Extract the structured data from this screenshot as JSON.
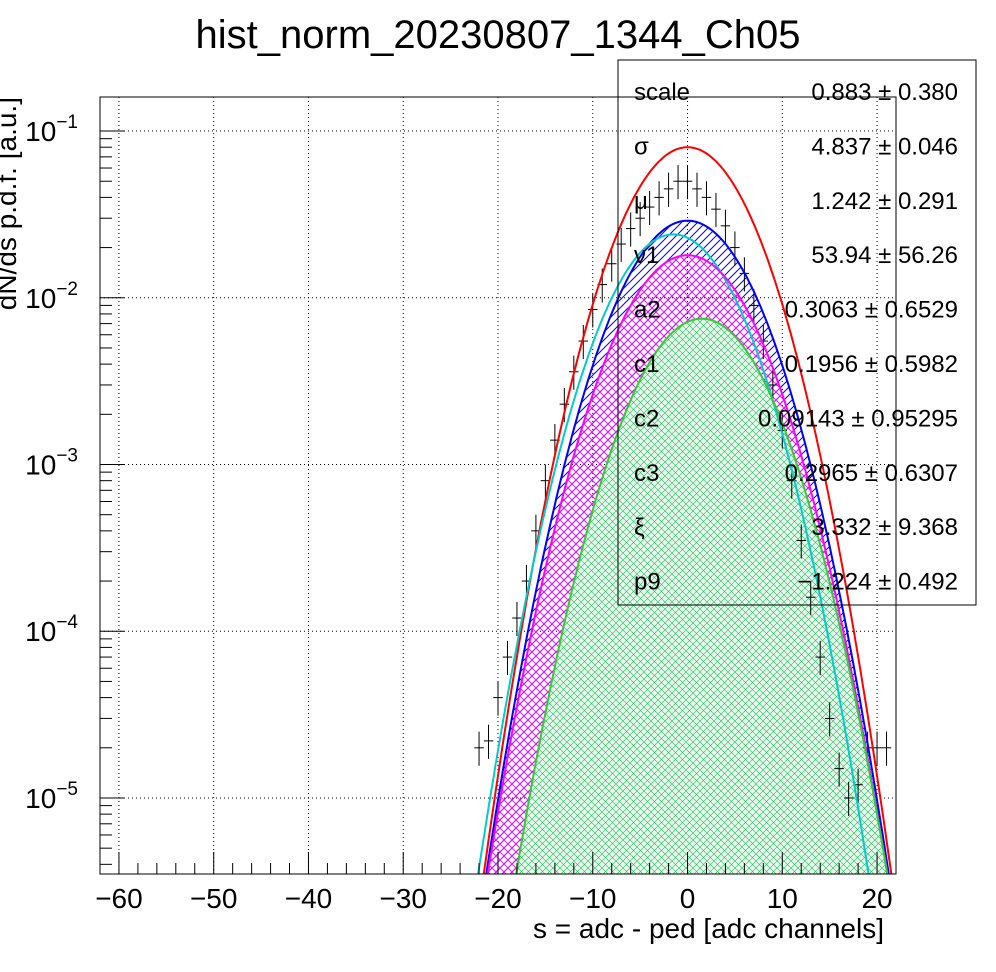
{
  "chart_data": {
    "type": "line",
    "title": "hist_norm_20230807_1344_Ch05",
    "xlabel": "s = adc - ped [adc channels]",
    "ylabel": "dN/ds p.d.f. [a.u.]",
    "xlim": [
      -62,
      22
    ],
    "ylim": [
      3.5e-06,
      0.16
    ],
    "yscale": "log",
    "grid": true,
    "x_ticks": [
      {
        "value": -60,
        "label": "−60"
      },
      {
        "value": -50,
        "label": "−50"
      },
      {
        "value": -40,
        "label": "−40"
      },
      {
        "value": -30,
        "label": "−30"
      },
      {
        "value": -20,
        "label": "−20"
      },
      {
        "value": -10,
        "label": "−10"
      },
      {
        "value": 0,
        "label": "0"
      },
      {
        "value": 10,
        "label": "10"
      },
      {
        "value": 20,
        "label": "20"
      }
    ],
    "y_ticks": [
      {
        "value": 0.1,
        "base": "10",
        "exp": "−1"
      },
      {
        "value": 0.01,
        "base": "10",
        "exp": "−2"
      },
      {
        "value": 0.001,
        "base": "10",
        "exp": "−3"
      },
      {
        "value": 0.0001,
        "base": "10",
        "exp": "−4"
      },
      {
        "value": 1e-05,
        "base": "10",
        "exp": "−5"
      }
    ],
    "histogram": {
      "color": "#000000",
      "x": [
        -22,
        -21,
        -20,
        -19,
        -18,
        -17,
        -16,
        -15,
        -14,
        -13,
        -12,
        -11,
        -10,
        -9,
        -8,
        -7,
        -6,
        -5,
        -4,
        -3,
        -2,
        -1,
        0,
        1,
        2,
        3,
        4,
        5,
        6,
        7,
        8,
        9,
        10,
        11,
        12,
        13,
        14,
        15,
        16,
        17,
        18,
        19,
        20,
        21
      ],
      "y": [
        2e-05,
        2.2e-05,
        4e-05,
        7e-05,
        0.00012,
        0.0002,
        0.0004,
        0.0008,
        0.0014,
        0.0023,
        0.0036,
        0.0055,
        0.0085,
        0.012,
        0.016,
        0.021,
        0.026,
        0.03,
        0.035,
        0.04,
        0.045,
        0.05,
        0.05,
        0.045,
        0.04,
        0.034,
        0.027,
        0.02,
        0.014,
        0.009,
        0.0055,
        0.003,
        0.0016,
        0.0008,
        0.00035,
        0.00016,
        7e-05,
        3e-05,
        1.5e-05,
        1e-05,
        1.2e-05,
        2e-05,
        2e-05,
        2e-05
      ]
    },
    "series": [
      {
        "color": "#ff0000",
        "peak_x": 0,
        "peak_y": 0.08,
        "sigma": 4.8,
        "filled": false
      },
      {
        "color": "#0000ff",
        "peak_x": 0,
        "peak_y": 0.029,
        "sigma": 5.0,
        "filled": true,
        "hatch": "diagonal"
      },
      {
        "color": "#00cccc",
        "peak_x": -1.5,
        "peak_y": 0.024,
        "sigma": 4.9,
        "filled": false
      },
      {
        "color": "#ff00ff",
        "peak_x": 0,
        "peak_y": 0.018,
        "sigma": 5.1,
        "filled": true,
        "hatch": "cross"
      },
      {
        "color": "#33cc33",
        "peak_x": 1.5,
        "peak_y": 0.0075,
        "sigma": 5.0,
        "filled": true,
        "hatch": "cross-light"
      }
    ]
  },
  "stats_box": {
    "rows": [
      {
        "name": "scale",
        "value": "0.883 ± 0.380"
      },
      {
        "name": "σ",
        "value": "4.837 ± 0.046"
      },
      {
        "name": "μ",
        "value": "1.242 ± 0.291"
      },
      {
        "name": "ν1",
        "value": "53.94 ± 56.26"
      },
      {
        "name": "a2",
        "value": "0.3063 ± 0.6529"
      },
      {
        "name": "c1",
        "value": "0.1956 ± 0.5982"
      },
      {
        "name": "c2",
        "value": "0.09143 ± 0.95295"
      },
      {
        "name": "c3",
        "value": "0.2965 ± 0.6307"
      },
      {
        "name": "ξ",
        "value": "3.332 ± 9.368"
      },
      {
        "name": "p9",
        "value": "−1.224 ± 0.492"
      }
    ]
  }
}
